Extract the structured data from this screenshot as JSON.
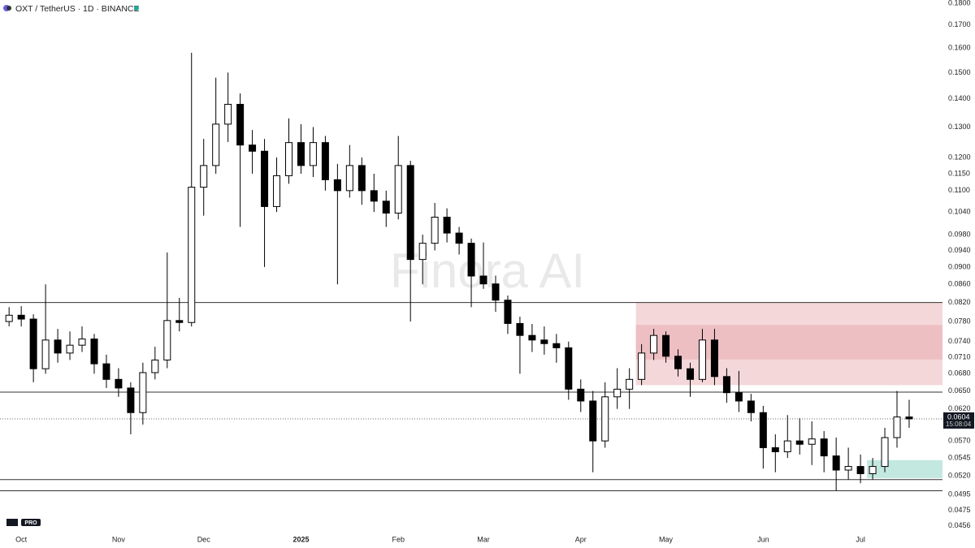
{
  "chart_data": {
    "type": "candlestick",
    "title": "OXT / TetherUS · 1D · BINANCE",
    "watermark": "Finora AI",
    "logo_text": "PRO",
    "log_scale": true,
    "grid": false,
    "up_color": "#ffffff",
    "down_color": "#000000",
    "categories": [
      null,
      "Oct",
      null,
      null,
      null,
      null,
      null,
      null,
      null,
      "Nov",
      null,
      null,
      null,
      null,
      null,
      null,
      "Dec",
      null,
      null,
      null,
      null,
      null,
      null,
      null,
      "2025",
      null,
      null,
      null,
      null,
      null,
      null,
      null,
      "Feb",
      null,
      null,
      null,
      null,
      null,
      null,
      "Mar",
      null,
      null,
      null,
      null,
      null,
      null,
      null,
      "Apr",
      null,
      null,
      null,
      null,
      null,
      null,
      "May",
      null,
      null,
      null,
      null,
      null,
      null,
      null,
      "Jun",
      null,
      null,
      null,
      null,
      null,
      null,
      null,
      "Jul",
      null,
      null,
      null,
      null
    ],
    "open": [
      0.078,
      0.0793,
      0.0785,
      0.0689,
      0.0743,
      0.0718,
      0.0733,
      0.0745,
      0.0698,
      0.067,
      0.0655,
      0.0614,
      0.0682,
      0.0705,
      0.0782,
      0.0778,
      0.111,
      0.1175,
      0.131,
      0.138,
      0.124,
      0.122,
      0.1055,
      0.1144,
      0.1248,
      0.1175,
      0.1248,
      0.1132,
      0.11,
      0.1175,
      0.11,
      0.107,
      0.1037,
      0.1175,
      0.0918,
      0.0958,
      0.1026,
      0.0984,
      0.0958,
      0.0879,
      0.0861,
      0.0825,
      0.0776,
      0.0752,
      0.0743,
      0.0736,
      0.0728,
      0.0653,
      0.0633,
      0.057,
      0.064,
      0.0653,
      0.067,
      0.0718,
      0.0752,
      0.0712,
      0.0689,
      0.067,
      0.0743,
      0.0675,
      0.0647,
      0.0633,
      0.0614,
      0.056,
      0.0554,
      0.057,
      0.0565,
      0.0573,
      0.0548,
      0.0528,
      0.0533,
      0.0523,
      0.0533,
      0.0575,
      0.0607
    ],
    "high": [
      0.081,
      0.0812,
      0.0795,
      0.086,
      0.0765,
      0.076,
      0.077,
      0.0755,
      0.0715,
      0.069,
      0.0665,
      0.07,
      0.073,
      0.0935,
      0.083,
      0.158,
      0.126,
      0.148,
      0.15,
      0.142,
      0.129,
      0.126,
      0.12,
      0.133,
      0.131,
      0.13,
      0.127,
      0.118,
      0.124,
      0.12,
      0.115,
      0.11,
      0.127,
      0.119,
      0.098,
      0.1065,
      0.105,
      0.1,
      0.097,
      0.096,
      0.088,
      0.0835,
      0.079,
      0.0775,
      0.077,
      0.0755,
      0.074,
      0.067,
      0.065,
      0.0665,
      0.069,
      0.069,
      0.0735,
      0.0765,
      0.076,
      0.0725,
      0.07,
      0.0765,
      0.0765,
      0.069,
      0.0685,
      0.0645,
      0.0625,
      0.058,
      0.061,
      0.0605,
      0.06,
      0.0585,
      0.0575,
      0.056,
      0.055,
      0.0545,
      0.059,
      0.065,
      0.0635
    ],
    "low": [
      0.077,
      0.077,
      0.0665,
      0.068,
      0.07,
      0.0705,
      0.072,
      0.068,
      0.0655,
      0.064,
      0.058,
      0.0595,
      0.067,
      0.069,
      0.076,
      0.077,
      0.103,
      0.115,
      0.125,
      0.1,
      0.115,
      0.09,
      0.104,
      0.112,
      0.115,
      0.114,
      0.11,
      0.086,
      0.108,
      0.106,
      0.104,
      0.1,
      0.102,
      0.078,
      0.086,
      0.094,
      0.096,
      0.093,
      0.081,
      0.085,
      0.08,
      0.0755,
      0.068,
      0.072,
      0.0715,
      0.07,
      0.0635,
      0.0615,
      0.0525,
      0.056,
      0.062,
      0.062,
      0.066,
      0.0705,
      0.07,
      0.0675,
      0.064,
      0.0665,
      0.066,
      0.063,
      0.0615,
      0.06,
      0.053,
      0.0525,
      0.0545,
      0.055,
      0.0535,
      0.0525,
      0.05,
      0.0515,
      0.051,
      0.0515,
      0.0525,
      0.056,
      0.059
    ],
    "close": [
      0.0793,
      0.0785,
      0.0689,
      0.0743,
      0.0718,
      0.0733,
      0.0745,
      0.0698,
      0.067,
      0.0655,
      0.0614,
      0.0682,
      0.0705,
      0.0782,
      0.0778,
      0.111,
      0.1175,
      0.131,
      0.138,
      0.124,
      0.122,
      0.1055,
      0.1144,
      0.1248,
      0.1175,
      0.1248,
      0.1132,
      0.11,
      0.1175,
      0.11,
      0.107,
      0.1037,
      0.1175,
      0.0918,
      0.0958,
      0.1026,
      0.0984,
      0.0958,
      0.0879,
      0.0861,
      0.0825,
      0.0776,
      0.0752,
      0.0743,
      0.0736,
      0.0728,
      0.0653,
      0.0633,
      0.057,
      0.064,
      0.0653,
      0.067,
      0.0718,
      0.0752,
      0.0712,
      0.0689,
      0.067,
      0.0743,
      0.0675,
      0.0647,
      0.0633,
      0.0614,
      0.056,
      0.0554,
      0.057,
      0.0565,
      0.0573,
      0.0548,
      0.0528,
      0.0533,
      0.0523,
      0.0533,
      0.0575,
      0.0607,
      0.0604
    ],
    "ylim": [
      0.0449,
      0.1815
    ],
    "yticks": [
      {
        "value": 0.18,
        "label": "0.1800"
      },
      {
        "value": 0.17,
        "label": "0.1700"
      },
      {
        "value": 0.16,
        "label": "0.1600"
      },
      {
        "value": 0.15,
        "label": "0.1500"
      },
      {
        "value": 0.14,
        "label": "0.1400"
      },
      {
        "value": 0.13,
        "label": "0.1300"
      },
      {
        "value": 0.12,
        "label": "0.1200"
      },
      {
        "value": 0.115,
        "label": "0.1150"
      },
      {
        "value": 0.11,
        "label": "0.1100"
      },
      {
        "value": 0.104,
        "label": "0.1040"
      },
      {
        "value": 0.098,
        "label": "0.0980"
      },
      {
        "value": 0.094,
        "label": "0.0940"
      },
      {
        "value": 0.09,
        "label": "0.0900"
      },
      {
        "value": 0.086,
        "label": "0.0860"
      },
      {
        "value": 0.082,
        "label": "0.0820"
      },
      {
        "value": 0.078,
        "label": "0.0780"
      },
      {
        "value": 0.074,
        "label": "0.0740"
      },
      {
        "value": 0.071,
        "label": "0.0710"
      },
      {
        "value": 0.068,
        "label": "0.0680"
      },
      {
        "value": 0.065,
        "label": "0.0650"
      },
      {
        "value": 0.062,
        "label": "0.0620"
      },
      {
        "value": 0.057,
        "label": "0.0570"
      },
      0.0545,
      {
        "value": 0.052,
        "label": "0.0520"
      },
      0.0495,
      0.0475,
      0.0456
    ],
    "levels": [
      0.082,
      0.0648,
      0.0515,
      0.05
    ],
    "zones": [
      {
        "top": 0.082,
        "bottom": 0.066,
        "color": "rgba(214,110,120,0.28)"
      },
      {
        "top": 0.0773,
        "bottom": 0.0706,
        "color": "rgba(214,110,120,0.22)"
      },
      {
        "top": 0.0542,
        "bottom": 0.0517,
        "color": "rgba(120,205,185,0.45)"
      }
    ],
    "current_price": 0.0604,
    "countdown": "15:08:04"
  }
}
